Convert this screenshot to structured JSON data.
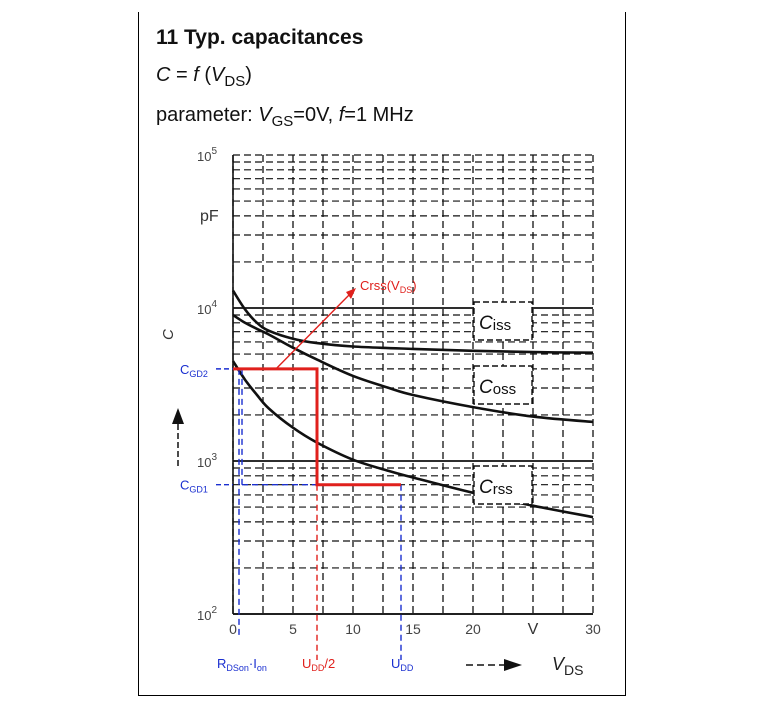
{
  "header": {
    "title": "11 Typ. capacitances",
    "function": {
      "lhs": "C",
      "eq": " = ",
      "f": "f",
      "open": " (",
      "var": "V",
      "var_sub": "DS",
      "close": ")"
    },
    "parameter": {
      "prefix": "parameter: ",
      "vgs": "V",
      "vgs_sub": "GS",
      "vgs_val": "=0V, ",
      "f": "f",
      "f_val": "=1 MHz"
    }
  },
  "chart_data": {
    "type": "line",
    "title": "11 Typ. capacitances",
    "xlabel": "V_DS",
    "x_unit": "V",
    "ylabel": "C",
    "y_unit": "pF",
    "xlim": [
      0,
      30
    ],
    "ylim": [
      100,
      100000
    ],
    "yscale": "log",
    "x_ticks": [
      0,
      5,
      10,
      15,
      20,
      30
    ],
    "x_tick_labels": [
      "0",
      "5",
      "10",
      "15",
      "20",
      "30"
    ],
    "x_unit_tick_value": 25,
    "y_ticks": [
      {
        "base": "10",
        "exp": "5",
        "value": 100000
      },
      {
        "base": "10",
        "exp": "4",
        "value": 10000
      },
      {
        "base": "10",
        "exp": "3",
        "value": 1000
      },
      {
        "base": "10",
        "exp": "2",
        "value": 100
      }
    ],
    "grid": true,
    "series": [
      {
        "name": "Ciss",
        "label_main": "C",
        "label_sub": "iss",
        "x": [
          0,
          1,
          2,
          3,
          5,
          7,
          10,
          15,
          20,
          25,
          30
        ],
        "y": [
          13000,
          9800,
          8000,
          7100,
          6300,
          5900,
          5600,
          5400,
          5250,
          5150,
          5100
        ]
      },
      {
        "name": "Coss",
        "label_main": "C",
        "label_sub": "oss",
        "x": [
          0,
          1,
          2,
          3,
          5,
          7,
          10,
          13,
          15,
          20,
          25,
          30
        ],
        "y": [
          9000,
          8000,
          7300,
          6700,
          5500,
          4600,
          3600,
          3000,
          2700,
          2250,
          1950,
          1800
        ]
      },
      {
        "name": "Crss",
        "label_main": "C",
        "label_sub": "rss",
        "x": [
          0,
          1,
          2,
          3,
          5,
          7,
          10,
          13,
          15,
          20,
          25,
          30
        ],
        "y": [
          4500,
          3400,
          2700,
          2200,
          1650,
          1320,
          1020,
          860,
          780,
          620,
          510,
          430
        ]
      }
    ],
    "annotations": {
      "crss_arrow": {
        "text_main": "Crss(V",
        "text_sub": "DS",
        "text_close": ")",
        "color": "#e0201c"
      },
      "cgd_profile": {
        "color": "#e0201c",
        "vdd": 14,
        "vdd_half": 7,
        "cgd1": 700,
        "cgd2": 4000
      },
      "cgd1_label": {
        "main": "C",
        "sub": "GD1"
      },
      "cgd2_label": {
        "main": "C",
        "sub": "GD2"
      },
      "rdson_label": {
        "main": "R",
        "sub1": "DSon",
        "mid": "·I",
        "sub2": "on"
      },
      "udd_half_label": {
        "main": "U",
        "sub": "DD",
        "suffix": "/2"
      },
      "udd_label": {
        "main": "U",
        "sub": "DD"
      },
      "guide_color": "#1a2fd0"
    }
  }
}
